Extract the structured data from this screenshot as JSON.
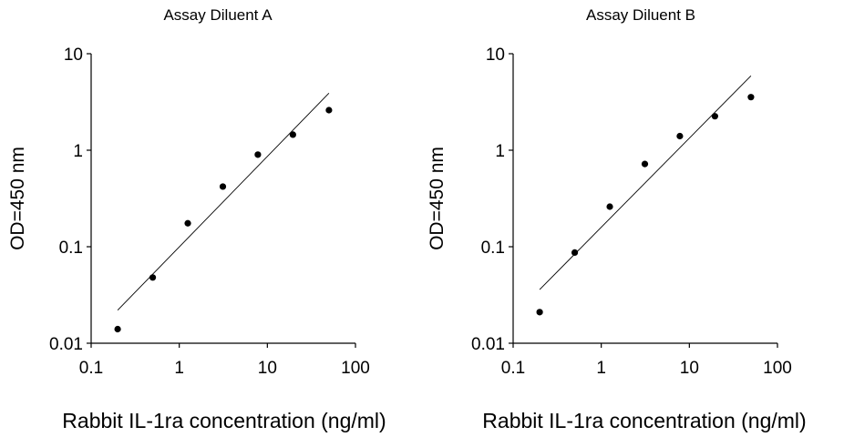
{
  "chart_data": [
    {
      "type": "scatter",
      "title": "Assay Diluent A",
      "xlabel": "Rabbit IL-1ra concentration (ng/ml)",
      "ylabel": "OD=450 nm",
      "xscale": "log",
      "yscale": "log",
      "xlim": [
        0.1,
        100
      ],
      "ylim": [
        0.01,
        10
      ],
      "xticks": [
        "0.1",
        "1",
        "10",
        "100"
      ],
      "yticks": [
        "0.01",
        "0.1",
        "1",
        "10"
      ],
      "grid": false,
      "legend": "none",
      "series": [
        {
          "x": [
            0.2,
            0.5,
            1.25,
            3.125,
            7.8,
            19.5,
            50
          ],
          "y": [
            0.014,
            0.048,
            0.175,
            0.42,
            0.9,
            1.45,
            2.6
          ]
        }
      ],
      "fit_line": {
        "x": [
          0.2,
          50
        ],
        "y": [
          0.022,
          3.9
        ]
      }
    },
    {
      "type": "scatter",
      "title": "Assay Diluent B",
      "xlabel": "Rabbit IL-1ra concentration (ng/ml)",
      "ylabel": "OD=450 nm",
      "xscale": "log",
      "yscale": "log",
      "xlim": [
        0.1,
        100
      ],
      "ylim": [
        0.01,
        10
      ],
      "xticks": [
        "0.1",
        "1",
        "10",
        "100"
      ],
      "yticks": [
        "0.01",
        "0.1",
        "1",
        "10"
      ],
      "grid": false,
      "legend": "none",
      "series": [
        {
          "x": [
            0.2,
            0.5,
            1.25,
            3.125,
            7.8,
            19.5,
            50
          ],
          "y": [
            0.021,
            0.087,
            0.26,
            0.72,
            1.4,
            2.25,
            3.55
          ]
        }
      ],
      "fit_line": {
        "x": [
          0.2,
          50
        ],
        "y": [
          0.036,
          5.9
        ]
      }
    }
  ]
}
